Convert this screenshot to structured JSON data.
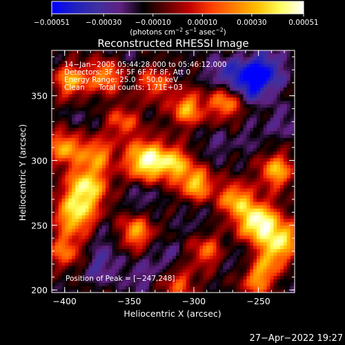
{
  "chart_data": {
    "type": "heatmap",
    "title": "Reconstructed RHESSI Image",
    "xlabel": "Heliocentric X (arcsec)",
    "ylabel": "Heliocentric Y (arcsec)",
    "xlim": [
      -410,
      -222
    ],
    "ylim": [
      198,
      385
    ],
    "x_ticks": [
      -400,
      -350,
      -300,
      -250
    ],
    "x_tick_labels": [
      "−400",
      "−350",
      "−300",
      "−250"
    ],
    "y_ticks": [
      200,
      250,
      300,
      350
    ],
    "y_tick_labels": [
      "200",
      "250",
      "300",
      "350"
    ],
    "colorbar": {
      "range": [
        -0.00051,
        0.00051
      ],
      "ticks": [
        -0.00051,
        -0.0003,
        -0.0001,
        0.0001,
        0.0003,
        0.00051
      ],
      "tick_labels": [
        "−0.00051",
        "−0.00030",
        "−0.00010",
        "0.00010",
        "0.00030",
        "0.00051"
      ],
      "unit_text": "(photons cm",
      "unit_sup1": "−2",
      "unit_mid": " s",
      "unit_sup2": "−1",
      "unit_mid2": " asec",
      "unit_sup3": "−2",
      "unit_end": ")",
      "colors": [
        "#0000ff",
        "#2020c0",
        "#4030a0",
        "#602080",
        "#000000",
        "#600000",
        "#c00000",
        "#ff4000",
        "#ff8000",
        "#ffc000",
        "#ffff60",
        "#ffffff"
      ]
    },
    "annotations": [
      "14−Jan−2005 05:44:28.000 to 05:46:12.000",
      "Detectors: 3F 4F 5F 6F 7F 8F, Att 0",
      "Energy Range: 25.0 − 50.0 keV",
      "Clean      Total counts: 1.71E+03"
    ],
    "peak_label": "Position of Peak = [−247,248]",
    "peak": [
      -247,
      248
    ],
    "hotspots": [
      {
        "x": -250,
        "y": 252,
        "value": 0.00051
      },
      {
        "x": -337,
        "y": 300,
        "value": 0.00048
      },
      {
        "x": -383,
        "y": 280,
        "value": 0.0004
      },
      {
        "x": -392,
        "y": 258,
        "value": 0.00036
      },
      {
        "x": -298,
        "y": 282,
        "value": 0.00034
      },
      {
        "x": -315,
        "y": 298,
        "value": 0.0003
      },
      {
        "x": -345,
        "y": 245,
        "value": 0.00028
      },
      {
        "x": -268,
        "y": 270,
        "value": 0.0003
      },
      {
        "x": -236,
        "y": 292,
        "value": 0.00032
      },
      {
        "x": -230,
        "y": 240,
        "value": 0.0003
      },
      {
        "x": -305,
        "y": 340,
        "value": 0.0003
      },
      {
        "x": -275,
        "y": 345,
        "value": 0.00028
      },
      {
        "x": -395,
        "y": 362,
        "value": 0.0003
      },
      {
        "x": -368,
        "y": 365,
        "value": 0.00026
      },
      {
        "x": -400,
        "y": 310,
        "value": 0.0003
      },
      {
        "x": -375,
        "y": 305,
        "value": 0.00024
      },
      {
        "x": -330,
        "y": 360,
        "value": 0.0002
      },
      {
        "x": -355,
        "y": 330,
        "value": 0.00016
      },
      {
        "x": -250,
        "y": 208,
        "value": 0.00026
      },
      {
        "x": -240,
        "y": 225,
        "value": 0.00022
      },
      {
        "x": -290,
        "y": 230,
        "value": 0.00018
      },
      {
        "x": -400,
        "y": 230,
        "value": 0.0002
      },
      {
        "x": -312,
        "y": 205,
        "value": 0.00015
      },
      {
        "x": -258,
        "y": 360,
        "value": -0.00045
      },
      {
        "x": -245,
        "y": 370,
        "value": -0.0004
      },
      {
        "x": -278,
        "y": 368,
        "value": -0.0003
      },
      {
        "x": -372,
        "y": 218,
        "value": -0.0003
      },
      {
        "x": -342,
        "y": 210,
        "value": -0.00025
      },
      {
        "x": -322,
        "y": 225,
        "value": -0.00025
      },
      {
        "x": -340,
        "y": 272,
        "value": -0.00025
      },
      {
        "x": -368,
        "y": 240,
        "value": -0.00022
      },
      {
        "x": -283,
        "y": 312,
        "value": -0.00022
      },
      {
        "x": -266,
        "y": 225,
        "value": -0.00022
      },
      {
        "x": -300,
        "y": 255,
        "value": -0.0002
      },
      {
        "x": -255,
        "y": 318,
        "value": -0.0002
      },
      {
        "x": -230,
        "y": 330,
        "value": -0.00025
      },
      {
        "x": -230,
        "y": 205,
        "value": -0.00018
      },
      {
        "x": -388,
        "y": 333,
        "value": -0.00018
      },
      {
        "x": -350,
        "y": 380,
        "value": -0.00018
      },
      {
        "x": -320,
        "y": 372,
        "value": -0.00015
      },
      {
        "x": -405,
        "y": 380,
        "value": -0.00015
      },
      {
        "x": -405,
        "y": 205,
        "value": -0.00015
      }
    ]
  },
  "footer": {
    "timestamp": "27−Apr−2022 19:27"
  }
}
